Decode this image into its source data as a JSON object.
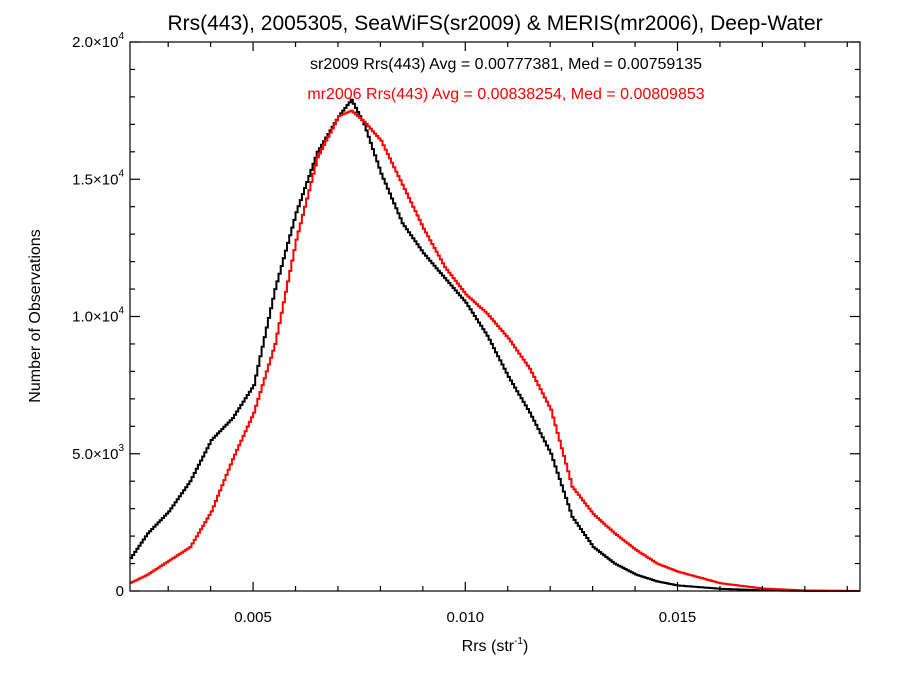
{
  "chart_data": {
    "type": "line",
    "title": "Rrs(443), 2005305, SeaWiFS(sr2009) & MERIS(mr2006), Deep-Water",
    "xlabel": "Rrs (str",
    "xlabel_sup": "-1",
    "xlabel_close": ")",
    "ylabel": "Number of Observations",
    "xlim": [
      0.0021,
      0.0193
    ],
    "ylim": [
      0,
      20000
    ],
    "x_ticks": [
      {
        "value": 0.005,
        "label": "0.005"
      },
      {
        "value": 0.01,
        "label": "0.010"
      },
      {
        "value": 0.015,
        "label": "0.015"
      }
    ],
    "y_ticks": [
      {
        "value": 0,
        "base": "0",
        "exp": ""
      },
      {
        "value": 5000,
        "base": "5.0×10",
        "exp": "3"
      },
      {
        "value": 10000,
        "base": "1.0×10",
        "exp": "4"
      },
      {
        "value": 15000,
        "base": "1.5×10",
        "exp": "4"
      },
      {
        "value": 20000,
        "base": "2.0×10",
        "exp": "4"
      }
    ],
    "annotations": [
      {
        "text": "sr2009 Rrs(443) Avg = 0.00777381, Med = 0.00759135",
        "color": "#000000"
      },
      {
        "text": "mr2006 Rrs(443) Avg = 0.00838254, Med = 0.00809853",
        "color": "#ff0000"
      }
    ],
    "series": [
      {
        "color": "#000000",
        "points": [
          [
            0.0021,
            1200
          ],
          [
            0.0025,
            2100
          ],
          [
            0.003,
            2900
          ],
          [
            0.0035,
            4000
          ],
          [
            0.004,
            5500
          ],
          [
            0.0045,
            6300
          ],
          [
            0.005,
            7500
          ],
          [
            0.0055,
            11000
          ],
          [
            0.006,
            13800
          ],
          [
            0.0065,
            16000
          ],
          [
            0.007,
            17300
          ],
          [
            0.0073,
            17900
          ],
          [
            0.0076,
            17000
          ],
          [
            0.008,
            15200
          ],
          [
            0.0085,
            13400
          ],
          [
            0.009,
            12300
          ],
          [
            0.0095,
            11400
          ],
          [
            0.01,
            10500
          ],
          [
            0.0105,
            9300
          ],
          [
            0.011,
            7800
          ],
          [
            0.0115,
            6500
          ],
          [
            0.012,
            5000
          ],
          [
            0.0125,
            2700
          ],
          [
            0.013,
            1600
          ],
          [
            0.0135,
            1000
          ],
          [
            0.014,
            600
          ],
          [
            0.0145,
            350
          ],
          [
            0.015,
            200
          ],
          [
            0.016,
            80
          ],
          [
            0.017,
            25
          ],
          [
            0.018,
            5
          ],
          [
            0.0193,
            0
          ]
        ]
      },
      {
        "color": "#ff0000",
        "points": [
          [
            0.0021,
            300
          ],
          [
            0.0025,
            600
          ],
          [
            0.003,
            1100
          ],
          [
            0.0035,
            1600
          ],
          [
            0.004,
            2900
          ],
          [
            0.0045,
            4800
          ],
          [
            0.005,
            6500
          ],
          [
            0.0055,
            9000
          ],
          [
            0.006,
            12800
          ],
          [
            0.0065,
            15800
          ],
          [
            0.007,
            17300
          ],
          [
            0.0073,
            17500
          ],
          [
            0.0076,
            17100
          ],
          [
            0.008,
            16400
          ],
          [
            0.0085,
            14800
          ],
          [
            0.009,
            13200
          ],
          [
            0.0095,
            11800
          ],
          [
            0.01,
            10800
          ],
          [
            0.0105,
            10100
          ],
          [
            0.011,
            9200
          ],
          [
            0.0115,
            8100
          ],
          [
            0.012,
            6600
          ],
          [
            0.0125,
            3800
          ],
          [
            0.013,
            2800
          ],
          [
            0.0135,
            2100
          ],
          [
            0.014,
            1500
          ],
          [
            0.0145,
            1000
          ],
          [
            0.015,
            700
          ],
          [
            0.016,
            280
          ],
          [
            0.017,
            90
          ],
          [
            0.018,
            20
          ],
          [
            0.0193,
            0
          ]
        ]
      }
    ]
  }
}
